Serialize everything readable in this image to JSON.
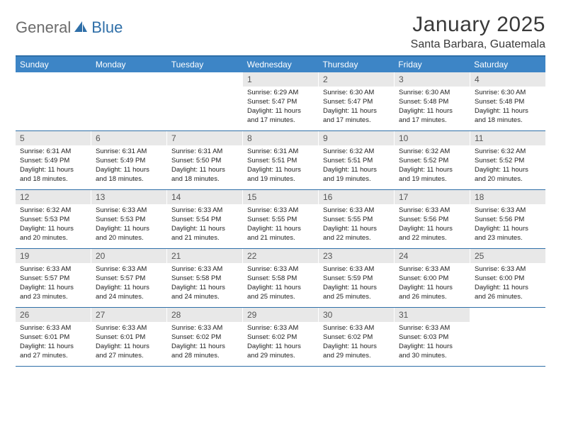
{
  "logo": {
    "part1": "General",
    "part2": "Blue"
  },
  "title": "January 2025",
  "location": "Santa Barbara, Guatemala",
  "colors": {
    "header_bar": "#3d85c6",
    "border": "#2f6fa8",
    "daynum_bg": "#e8e8e8",
    "logo_gray": "#6b6b6b",
    "logo_blue": "#2f6fa8"
  },
  "weekdays": [
    "Sunday",
    "Monday",
    "Tuesday",
    "Wednesday",
    "Thursday",
    "Friday",
    "Saturday"
  ],
  "weeks": [
    [
      {
        "num": "",
        "sunrise": "",
        "sunset": "",
        "daylight": ""
      },
      {
        "num": "",
        "sunrise": "",
        "sunset": "",
        "daylight": ""
      },
      {
        "num": "",
        "sunrise": "",
        "sunset": "",
        "daylight": ""
      },
      {
        "num": "1",
        "sunrise": "Sunrise: 6:29 AM",
        "sunset": "Sunset: 5:47 PM",
        "daylight": "Daylight: 11 hours and 17 minutes."
      },
      {
        "num": "2",
        "sunrise": "Sunrise: 6:30 AM",
        "sunset": "Sunset: 5:47 PM",
        "daylight": "Daylight: 11 hours and 17 minutes."
      },
      {
        "num": "3",
        "sunrise": "Sunrise: 6:30 AM",
        "sunset": "Sunset: 5:48 PM",
        "daylight": "Daylight: 11 hours and 17 minutes."
      },
      {
        "num": "4",
        "sunrise": "Sunrise: 6:30 AM",
        "sunset": "Sunset: 5:48 PM",
        "daylight": "Daylight: 11 hours and 18 minutes."
      }
    ],
    [
      {
        "num": "5",
        "sunrise": "Sunrise: 6:31 AM",
        "sunset": "Sunset: 5:49 PM",
        "daylight": "Daylight: 11 hours and 18 minutes."
      },
      {
        "num": "6",
        "sunrise": "Sunrise: 6:31 AM",
        "sunset": "Sunset: 5:49 PM",
        "daylight": "Daylight: 11 hours and 18 minutes."
      },
      {
        "num": "7",
        "sunrise": "Sunrise: 6:31 AM",
        "sunset": "Sunset: 5:50 PM",
        "daylight": "Daylight: 11 hours and 18 minutes."
      },
      {
        "num": "8",
        "sunrise": "Sunrise: 6:31 AM",
        "sunset": "Sunset: 5:51 PM",
        "daylight": "Daylight: 11 hours and 19 minutes."
      },
      {
        "num": "9",
        "sunrise": "Sunrise: 6:32 AM",
        "sunset": "Sunset: 5:51 PM",
        "daylight": "Daylight: 11 hours and 19 minutes."
      },
      {
        "num": "10",
        "sunrise": "Sunrise: 6:32 AM",
        "sunset": "Sunset: 5:52 PM",
        "daylight": "Daylight: 11 hours and 19 minutes."
      },
      {
        "num": "11",
        "sunrise": "Sunrise: 6:32 AM",
        "sunset": "Sunset: 5:52 PM",
        "daylight": "Daylight: 11 hours and 20 minutes."
      }
    ],
    [
      {
        "num": "12",
        "sunrise": "Sunrise: 6:32 AM",
        "sunset": "Sunset: 5:53 PM",
        "daylight": "Daylight: 11 hours and 20 minutes."
      },
      {
        "num": "13",
        "sunrise": "Sunrise: 6:33 AM",
        "sunset": "Sunset: 5:53 PM",
        "daylight": "Daylight: 11 hours and 20 minutes."
      },
      {
        "num": "14",
        "sunrise": "Sunrise: 6:33 AM",
        "sunset": "Sunset: 5:54 PM",
        "daylight": "Daylight: 11 hours and 21 minutes."
      },
      {
        "num": "15",
        "sunrise": "Sunrise: 6:33 AM",
        "sunset": "Sunset: 5:55 PM",
        "daylight": "Daylight: 11 hours and 21 minutes."
      },
      {
        "num": "16",
        "sunrise": "Sunrise: 6:33 AM",
        "sunset": "Sunset: 5:55 PM",
        "daylight": "Daylight: 11 hours and 22 minutes."
      },
      {
        "num": "17",
        "sunrise": "Sunrise: 6:33 AM",
        "sunset": "Sunset: 5:56 PM",
        "daylight": "Daylight: 11 hours and 22 minutes."
      },
      {
        "num": "18",
        "sunrise": "Sunrise: 6:33 AM",
        "sunset": "Sunset: 5:56 PM",
        "daylight": "Daylight: 11 hours and 23 minutes."
      }
    ],
    [
      {
        "num": "19",
        "sunrise": "Sunrise: 6:33 AM",
        "sunset": "Sunset: 5:57 PM",
        "daylight": "Daylight: 11 hours and 23 minutes."
      },
      {
        "num": "20",
        "sunrise": "Sunrise: 6:33 AM",
        "sunset": "Sunset: 5:57 PM",
        "daylight": "Daylight: 11 hours and 24 minutes."
      },
      {
        "num": "21",
        "sunrise": "Sunrise: 6:33 AM",
        "sunset": "Sunset: 5:58 PM",
        "daylight": "Daylight: 11 hours and 24 minutes."
      },
      {
        "num": "22",
        "sunrise": "Sunrise: 6:33 AM",
        "sunset": "Sunset: 5:58 PM",
        "daylight": "Daylight: 11 hours and 25 minutes."
      },
      {
        "num": "23",
        "sunrise": "Sunrise: 6:33 AM",
        "sunset": "Sunset: 5:59 PM",
        "daylight": "Daylight: 11 hours and 25 minutes."
      },
      {
        "num": "24",
        "sunrise": "Sunrise: 6:33 AM",
        "sunset": "Sunset: 6:00 PM",
        "daylight": "Daylight: 11 hours and 26 minutes."
      },
      {
        "num": "25",
        "sunrise": "Sunrise: 6:33 AM",
        "sunset": "Sunset: 6:00 PM",
        "daylight": "Daylight: 11 hours and 26 minutes."
      }
    ],
    [
      {
        "num": "26",
        "sunrise": "Sunrise: 6:33 AM",
        "sunset": "Sunset: 6:01 PM",
        "daylight": "Daylight: 11 hours and 27 minutes."
      },
      {
        "num": "27",
        "sunrise": "Sunrise: 6:33 AM",
        "sunset": "Sunset: 6:01 PM",
        "daylight": "Daylight: 11 hours and 27 minutes."
      },
      {
        "num": "28",
        "sunrise": "Sunrise: 6:33 AM",
        "sunset": "Sunset: 6:02 PM",
        "daylight": "Daylight: 11 hours and 28 minutes."
      },
      {
        "num": "29",
        "sunrise": "Sunrise: 6:33 AM",
        "sunset": "Sunset: 6:02 PM",
        "daylight": "Daylight: 11 hours and 29 minutes."
      },
      {
        "num": "30",
        "sunrise": "Sunrise: 6:33 AM",
        "sunset": "Sunset: 6:02 PM",
        "daylight": "Daylight: 11 hours and 29 minutes."
      },
      {
        "num": "31",
        "sunrise": "Sunrise: 6:33 AM",
        "sunset": "Sunset: 6:03 PM",
        "daylight": "Daylight: 11 hours and 30 minutes."
      },
      {
        "num": "",
        "sunrise": "",
        "sunset": "",
        "daylight": ""
      }
    ]
  ]
}
